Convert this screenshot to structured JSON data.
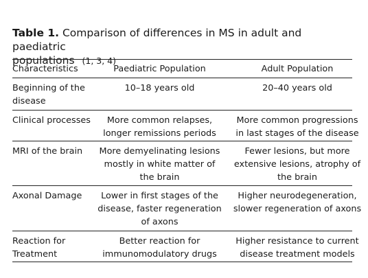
{
  "caption": {
    "label": "Table 1.",
    "lines": [
      "Comparison of differences in MS in adult and paediatric",
      "populations"
    ],
    "refs": "(1, 3, 4)"
  },
  "table": {
    "header": [
      "Characteristics",
      "Paediatric Population",
      "Adult Population"
    ],
    "rows": [
      [
        [
          "Beginning of the",
          "disease"
        ],
        [
          "10–18 years old"
        ],
        [
          "20–40 years old"
        ]
      ],
      [
        [
          "Clinical processes"
        ],
        [
          "More common relapses,",
          "longer remissions periods"
        ],
        [
          "More common progressions",
          "in last stages of the disease"
        ]
      ],
      [
        [
          "MRI of the brain"
        ],
        [
          "More demyelinating lesions",
          "mostly in white matter of",
          "the brain"
        ],
        [
          "Fewer lesions, but more",
          "extensive lesions, atrophy of",
          "the brain"
        ]
      ],
      [
        [
          "Axonal Damage"
        ],
        [
          "Lower in first stages of the",
          "disease, faster regeneration",
          "of axons"
        ],
        [
          "Higher neurodegeneration,",
          "slower regeneration of axons"
        ]
      ],
      [
        [
          "Reaction for",
          "Treatment"
        ],
        [
          "Better reaction for",
          "immunomodulatory drugs"
        ],
        [
          "Higher resistance to current",
          "disease treatment models"
        ]
      ]
    ]
  }
}
